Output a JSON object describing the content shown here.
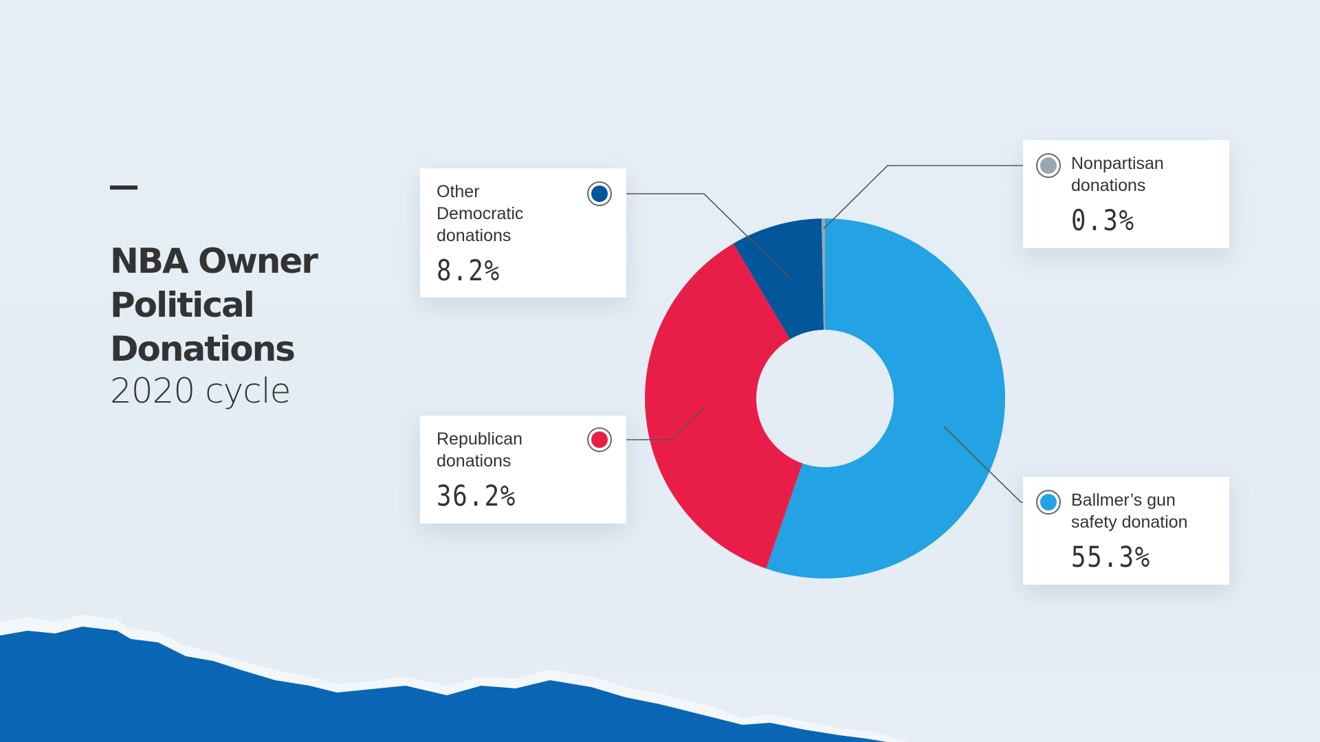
{
  "title_lines": [
    "NBA Owner",
    "Political",
    "Donations"
  ],
  "subtitle": "2020 cycle",
  "chart_data": {
    "type": "pie",
    "donut": true,
    "title": "NBA Owner Political Donations",
    "subtitle": "2020 cycle",
    "unit": "%",
    "slices": [
      {
        "label": "Ballmer’s gun safety donation",
        "value": 55.3,
        "display": "55.3%",
        "color": "#23a3e3"
      },
      {
        "label": "Republican donations",
        "value": 36.2,
        "display": "36.2%",
        "color": "#e91e48"
      },
      {
        "label": "Other Democratic donations",
        "value": 8.2,
        "display": "8.2%",
        "color": "#04569a"
      },
      {
        "label": "Nonpartisan donations",
        "value": 0.3,
        "display": "0.3%",
        "color": "#9aa6b0"
      }
    ]
  },
  "colors": {
    "background": "#e6eef5",
    "torn_paper": "#0a66b5",
    "text": "#333333"
  }
}
